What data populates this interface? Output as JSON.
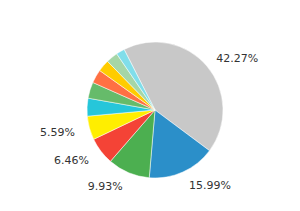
{
  "chart_data": {
    "type": "pie",
    "values": [
      42.27,
      15.99,
      9.93,
      6.46,
      5.59,
      4.2,
      3.8,
      3.2,
      2.8,
      2.76,
      2.0
    ],
    "value_labels": [
      "42.27%",
      "15.99%",
      "9.93%",
      "6.46%",
      "5.59%",
      null,
      null,
      null,
      null,
      null,
      null
    ],
    "colors": [
      "#c8c8c8",
      "#2b8fc9",
      "#4caf50",
      "#f44336",
      "#ffee00",
      "#26c6da",
      "#66bb6a",
      "#ff7043",
      "#ffcc00",
      "#a5d6a7",
      "#80deea"
    ],
    "data_labels": true
  }
}
